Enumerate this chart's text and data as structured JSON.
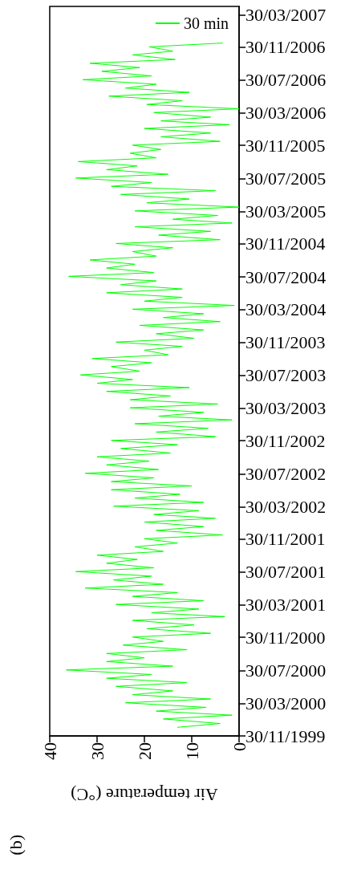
{
  "chart_data": {
    "type": "line",
    "orientation": "horizontal",
    "xlabel": "Air temperature (°C)",
    "annotations": [
      "(b)"
    ],
    "legend": "top right",
    "grid": false,
    "marker": "none",
    "line_style": "solid",
    "xlim": [
      40,
      0
    ],
    "xticks": [
      40,
      30,
      20,
      10,
      0
    ],
    "ylim": [
      "1999-11-30",
      "2007-04-30"
    ],
    "yticks": [
      {
        "value": "1999-11-30",
        "label": "30/11/1999"
      },
      {
        "value": "2000-03-30",
        "label": "30/03/2000"
      },
      {
        "value": "2000-07-30",
        "label": "30/07/2000"
      },
      {
        "value": "2000-11-30",
        "label": "30/11/2000"
      },
      {
        "value": "2001-03-30",
        "label": "30/03/2001"
      },
      {
        "value": "2001-07-30",
        "label": "30/07/2001"
      },
      {
        "value": "2001-11-30",
        "label": "30/11/2001"
      },
      {
        "value": "2002-03-30",
        "label": "30/03/2002"
      },
      {
        "value": "2002-07-30",
        "label": "30/07/2002"
      },
      {
        "value": "2002-11-30",
        "label": "30/11/2002"
      },
      {
        "value": "2003-03-30",
        "label": "30/03/2003"
      },
      {
        "value": "2003-07-30",
        "label": "30/07/2003"
      },
      {
        "value": "2003-11-30",
        "label": "30/11/2003"
      },
      {
        "value": "2004-03-30",
        "label": "30/03/2004"
      },
      {
        "value": "2004-07-30",
        "label": "30/07/2004"
      },
      {
        "value": "2004-11-30",
        "label": "30/11/2004"
      },
      {
        "value": "2005-03-30",
        "label": "30/03/2005"
      },
      {
        "value": "2005-07-30",
        "label": "30/07/2005"
      },
      {
        "value": "2005-11-30",
        "label": "30/11/2005"
      },
      {
        "value": "2006-03-30",
        "label": "30/03/2006"
      },
      {
        "value": "2006-07-30",
        "label": "30/07/2006"
      },
      {
        "value": "2006-11-30",
        "label": "30/11/2006"
      },
      {
        "value": "2007-03-30",
        "label": "30/03/2007"
      }
    ],
    "series": [
      {
        "name": "30 min",
        "color": "#00ff00",
        "x": [
          "2000-01-01",
          "2000-01-15",
          "2000-02-01",
          "2000-02-15",
          "2000-03-01",
          "2000-03-15",
          "2000-04-01",
          "2000-04-15",
          "2000-05-01",
          "2000-05-15",
          "2000-06-01",
          "2000-06-15",
          "2000-07-01",
          "2000-07-15",
          "2000-08-01",
          "2000-08-15",
          "2000-09-01",
          "2000-09-15",
          "2000-10-01",
          "2000-10-15",
          "2000-11-01",
          "2000-11-15",
          "2000-12-01",
          "2000-12-15",
          "2001-01-01",
          "2001-01-15",
          "2001-02-01",
          "2001-02-15",
          "2001-03-01",
          "2001-03-15",
          "2001-04-01",
          "2001-04-15",
          "2001-05-01",
          "2001-05-15",
          "2001-06-01",
          "2001-06-15",
          "2001-07-01",
          "2001-07-15",
          "2001-08-01",
          "2001-08-15",
          "2001-09-01",
          "2001-09-15",
          "2001-10-01",
          "2001-10-15",
          "2001-11-01",
          "2001-11-15",
          "2001-12-01",
          "2001-12-15",
          "2002-01-01",
          "2002-01-15",
          "2002-02-01",
          "2002-02-15",
          "2002-03-01",
          "2002-03-15",
          "2002-04-01",
          "2002-04-15",
          "2002-05-01",
          "2002-05-15",
          "2002-06-01",
          "2002-06-15",
          "2002-07-01",
          "2002-07-15",
          "2002-08-01",
          "2002-08-15",
          "2002-09-01",
          "2002-09-15",
          "2002-10-01",
          "2002-10-15",
          "2002-11-01",
          "2002-11-15",
          "2002-12-01",
          "2002-12-15",
          "2003-01-01",
          "2003-01-15",
          "2003-02-01",
          "2003-02-15",
          "2003-03-01",
          "2003-03-15",
          "2003-04-01",
          "2003-04-15",
          "2003-05-01",
          "2003-05-15",
          "2003-06-01",
          "2003-06-15",
          "2003-07-01",
          "2003-07-15",
          "2003-08-01",
          "2003-08-15",
          "2003-09-01",
          "2003-09-15",
          "2003-10-01",
          "2003-10-15",
          "2003-11-01",
          "2003-11-15",
          "2003-12-01",
          "2003-12-15",
          "2004-01-01",
          "2004-01-15",
          "2004-02-01",
          "2004-02-15",
          "2004-03-01",
          "2004-03-15",
          "2004-04-01",
          "2004-04-15",
          "2004-05-01",
          "2004-05-15",
          "2004-06-01",
          "2004-06-15",
          "2004-07-01",
          "2004-07-15",
          "2004-08-01",
          "2004-08-15",
          "2004-09-01",
          "2004-09-15",
          "2004-10-01",
          "2004-10-15",
          "2004-11-01",
          "2004-11-15",
          "2004-12-01",
          "2004-12-15",
          "2005-01-01",
          "2005-01-15",
          "2005-02-01",
          "2005-02-15",
          "2005-03-01",
          "2005-03-15",
          "2005-04-01",
          "2005-04-15",
          "2005-05-01",
          "2005-05-15",
          "2005-06-01",
          "2005-06-15",
          "2005-07-01",
          "2005-07-15",
          "2005-08-01",
          "2005-08-15",
          "2005-09-01",
          "2005-09-15",
          "2005-10-01",
          "2005-10-15",
          "2005-11-01",
          "2005-11-15",
          "2005-12-01",
          "2005-12-15",
          "2006-01-01",
          "2006-01-15",
          "2006-02-01",
          "2006-02-15",
          "2006-03-01",
          "2006-03-15",
          "2006-04-01",
          "2006-04-15",
          "2006-05-01",
          "2006-05-15",
          "2006-06-01",
          "2006-06-15",
          "2006-07-01",
          "2006-07-15",
          "2006-08-01",
          "2006-08-15",
          "2006-09-01",
          "2006-09-15",
          "2006-10-01",
          "2006-10-15",
          "2006-11-01",
          "2006-11-15",
          "2006-12-01",
          "2006-12-15"
        ],
        "values": [
          13,
          4,
          16,
          1.5,
          17.5,
          7,
          24,
          6,
          22.5,
          14,
          26,
          11,
          28,
          18.5,
          36.5,
          14,
          28,
          20,
          28,
          11,
          24.5,
          16,
          22.5,
          6,
          19.5,
          9.5,
          22.5,
          3,
          18.5,
          8.5,
          26,
          7.5,
          22.5,
          13,
          32.5,
          16,
          26.5,
          18.5,
          34.5,
          18,
          28,
          21.5,
          30,
          16,
          22,
          13,
          20,
          3.5,
          17.5,
          7.5,
          20,
          5,
          18,
          8.5,
          26.5,
          7.5,
          22,
          12.5,
          27,
          10,
          27,
          18,
          32.5,
          17,
          28,
          19,
          30,
          14.5,
          25,
          13,
          27,
          5,
          17.5,
          6.5,
          22,
          1.5,
          17,
          7.5,
          23,
          4.5,
          23,
          14.5,
          28,
          10.5,
          30,
          22.5,
          33.5,
          21,
          27,
          18.5,
          31,
          15,
          20,
          12,
          26,
          9.5,
          17.5,
          7.5,
          21,
          4,
          16,
          7.5,
          22.5,
          1,
          20,
          12,
          28,
          12,
          25,
          17.5,
          36,
          18,
          28,
          22,
          31.5,
          17.5,
          22.5,
          14,
          26,
          4,
          17,
          6,
          22,
          1.5,
          14,
          4.5,
          22,
          0,
          19.5,
          10.5,
          25,
          5,
          27,
          18.5,
          34.5,
          15,
          28,
          21.5,
          34,
          17.5,
          23,
          16.5,
          22.5,
          4,
          16.5,
          6,
          20,
          2,
          16.5,
          6,
          18,
          0,
          19.5,
          12,
          27.5,
          10.5,
          24,
          17.5,
          33,
          18.5,
          29,
          21,
          31.5,
          13.5,
          22.5,
          14,
          19,
          3.5
        ]
      }
    ]
  }
}
